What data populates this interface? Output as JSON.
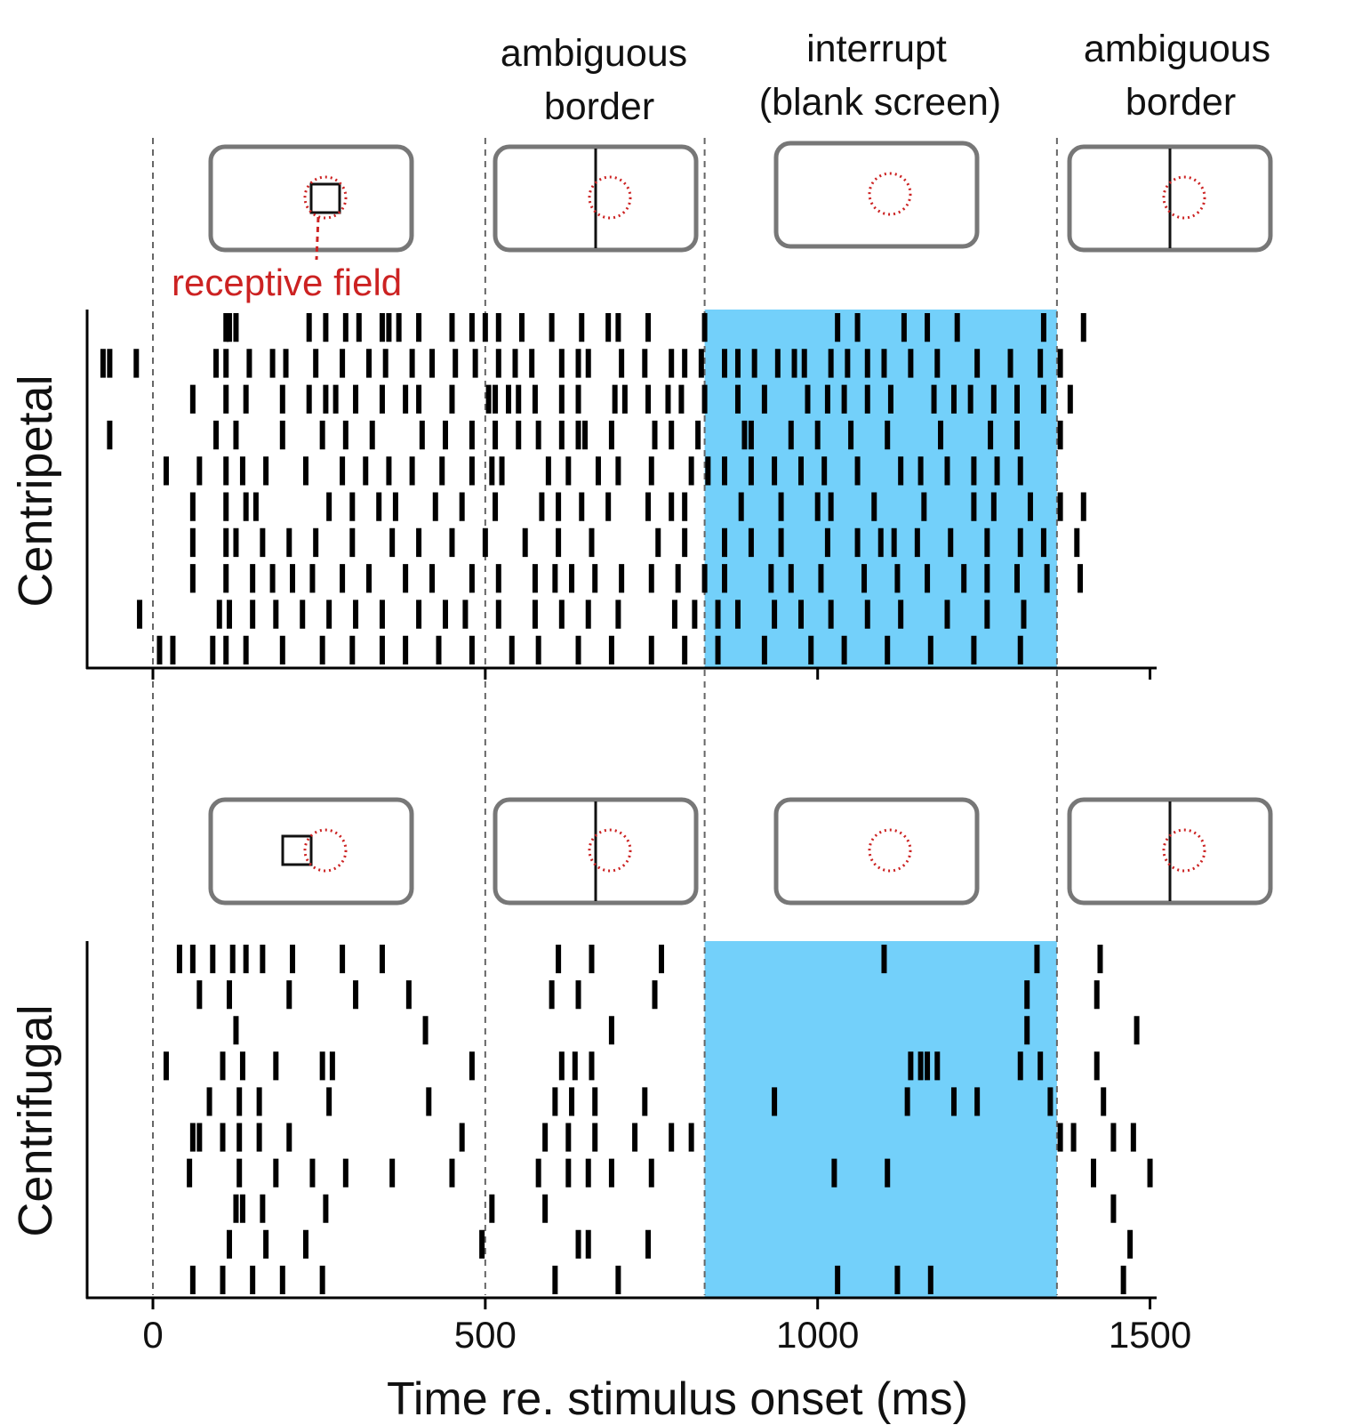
{
  "colors": {
    "interrupt_shade": "#73d0fa",
    "spike": "#000000",
    "receptive_field": "#cc2222",
    "screen_frame": "#777777",
    "boundary_line": "#666666"
  },
  "phase_labels": {
    "ambiguous_1": [
      "ambiguous",
      "border"
    ],
    "interrupt": [
      "interrupt",
      "(blank screen)"
    ],
    "ambiguous_2": [
      "ambiguous",
      "border"
    ]
  },
  "receptive_field_label": "receptive field",
  "chart_data": {
    "type": "raster",
    "xlabel": "Time re. stimulus onset (ms)",
    "xlim": [
      -100,
      1500
    ],
    "xticks": [
      0,
      500,
      1000,
      1500
    ],
    "phase_boundaries_ms": [
      0,
      500,
      830,
      1360
    ],
    "interrupt_interval_ms": [
      830,
      1360
    ],
    "trials_per_panel": 10,
    "panels": [
      {
        "name": "Centripetal",
        "trials": [
          [
            110,
            115,
            125,
            235,
            260,
            290,
            310,
            345,
            355,
            370,
            400,
            450,
            480,
            500,
            520,
            555,
            600,
            645,
            685,
            700,
            745,
            830,
            1030,
            1060,
            1130,
            1165,
            1210,
            1340,
            1400
          ],
          [
            -75,
            -65,
            -25,
            95,
            110,
            145,
            180,
            200,
            245,
            285,
            325,
            350,
            390,
            420,
            455,
            485,
            520,
            545,
            570,
            615,
            640,
            655,
            705,
            740,
            780,
            800,
            825,
            860,
            880,
            905,
            940,
            965,
            980,
            1020,
            1045,
            1075,
            1100,
            1140,
            1180,
            1240,
            1290,
            1335,
            1365
          ],
          [
            60,
            110,
            140,
            195,
            235,
            260,
            275,
            305,
            345,
            380,
            400,
            450,
            505,
            515,
            535,
            550,
            575,
            615,
            640,
            695,
            710,
            745,
            775,
            795,
            830,
            880,
            920,
            985,
            1015,
            1040,
            1075,
            1110,
            1175,
            1205,
            1230,
            1265,
            1300,
            1340,
            1380
          ],
          [
            -65,
            95,
            125,
            195,
            255,
            290,
            330,
            405,
            440,
            480,
            515,
            550,
            580,
            615,
            640,
            650,
            690,
            755,
            780,
            820,
            890,
            900,
            960,
            1000,
            1050,
            1105,
            1185,
            1260,
            1300,
            1365
          ],
          [
            20,
            70,
            110,
            135,
            170,
            230,
            285,
            320,
            355,
            390,
            435,
            480,
            510,
            525,
            595,
            625,
            670,
            700,
            750,
            810,
            835,
            860,
            900,
            935,
            975,
            1010,
            1060,
            1125,
            1155,
            1195,
            1235,
            1270,
            1305
          ],
          [
            60,
            110,
            140,
            155,
            265,
            300,
            340,
            365,
            425,
            465,
            515,
            585,
            610,
            645,
            685,
            745,
            780,
            800,
            885,
            945,
            1000,
            1020,
            1085,
            1160,
            1235,
            1265,
            1320,
            1365,
            1400
          ],
          [
            60,
            110,
            125,
            165,
            205,
            245,
            300,
            360,
            400,
            450,
            500,
            560,
            610,
            660,
            760,
            800,
            860,
            900,
            945,
            1015,
            1060,
            1095,
            1115,
            1150,
            1200,
            1255,
            1305,
            1340,
            1390
          ],
          [
            60,
            110,
            150,
            180,
            210,
            240,
            285,
            325,
            380,
            420,
            480,
            520,
            575,
            605,
            630,
            665,
            705,
            750,
            790,
            830,
            860,
            930,
            960,
            1005,
            1070,
            1120,
            1165,
            1220,
            1255,
            1300,
            1345,
            1395
          ],
          [
            -20,
            100,
            115,
            150,
            185,
            225,
            265,
            305,
            345,
            400,
            440,
            470,
            520,
            575,
            615,
            655,
            700,
            785,
            815,
            850,
            880,
            935,
            975,
            1020,
            1075,
            1125,
            1195,
            1255,
            1310
          ],
          [
            10,
            30,
            90,
            110,
            140,
            195,
            255,
            300,
            345,
            380,
            430,
            480,
            540,
            580,
            640,
            690,
            750,
            800,
            850,
            920,
            990,
            1040,
            1105,
            1170,
            1235,
            1305
          ]
        ]
      },
      {
        "name": "Centrifugal",
        "trials": [
          [
            40,
            60,
            90,
            120,
            140,
            165,
            210,
            285,
            345,
            610,
            660,
            765,
            1100,
            1330,
            1425
          ],
          [
            70,
            115,
            205,
            305,
            385,
            600,
            640,
            755,
            1315,
            1420
          ],
          [
            125,
            410,
            690,
            1315,
            1480
          ],
          [
            20,
            105,
            135,
            185,
            255,
            270,
            480,
            615,
            635,
            660,
            1140,
            1155,
            1165,
            1180,
            1305,
            1335,
            1420
          ],
          [
            85,
            130,
            160,
            265,
            415,
            605,
            630,
            665,
            740,
            935,
            1135,
            1205,
            1240,
            1350,
            1430
          ],
          [
            60,
            70,
            105,
            130,
            160,
            205,
            465,
            590,
            625,
            665,
            725,
            780,
            810,
            1365,
            1385,
            1445,
            1475
          ],
          [
            55,
            130,
            185,
            240,
            290,
            360,
            450,
            580,
            625,
            655,
            690,
            750,
            1025,
            1105,
            1415,
            1500
          ],
          [
            125,
            135,
            165,
            260,
            510,
            590,
            1445
          ],
          [
            115,
            170,
            230,
            495,
            640,
            655,
            745,
            1470
          ],
          [
            60,
            105,
            150,
            195,
            255,
            605,
            700,
            1030,
            1120,
            1170,
            1460
          ]
        ]
      }
    ]
  }
}
